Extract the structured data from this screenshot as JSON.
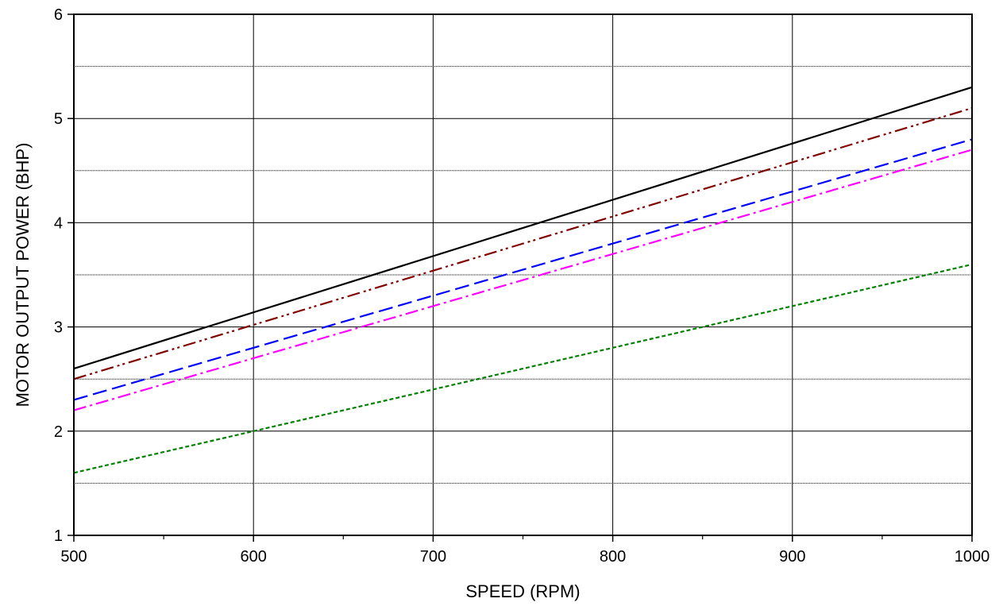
{
  "chart_data": {
    "type": "line",
    "title": "",
    "xlabel": "SPEED (RPM)",
    "ylabel": "MOTOR OUTPUT POWER (BHP)",
    "xlim": [
      500,
      1000
    ],
    "ylim": [
      1,
      6
    ],
    "x_ticks": [
      500,
      600,
      700,
      800,
      900,
      1000
    ],
    "x_tick_labels": [
      "500",
      "600",
      "700",
      "800",
      "900",
      "1000"
    ],
    "x_minor_ticks": [
      550,
      650,
      750,
      850,
      950
    ],
    "y_ticks": [
      1,
      2,
      3,
      4,
      5,
      6
    ],
    "y_tick_labels": [
      "1",
      "2",
      "3",
      "4",
      "5",
      "6"
    ],
    "y_minor_gridlines": [
      1.5,
      2.5,
      3.5,
      4.5,
      5.5
    ],
    "grid": true,
    "legend": "none",
    "series": [
      {
        "x": [
          500,
          1000
        ],
        "values": [
          2.6,
          5.3
        ],
        "color": "#000000",
        "dash": "solid"
      },
      {
        "x": [
          500,
          1000
        ],
        "values": [
          2.5,
          5.1
        ],
        "color": "#800000",
        "dash": "dash-dot-dot"
      },
      {
        "x": [
          500,
          1000
        ],
        "values": [
          2.3,
          4.8
        ],
        "color": "#0000ff",
        "dash": "dash"
      },
      {
        "x": [
          500,
          1000
        ],
        "values": [
          2.2,
          4.7
        ],
        "color": "#ff00ff",
        "dash": "dash-dot"
      },
      {
        "x": [
          500,
          600,
          700,
          800,
          900,
          1000
        ],
        "values": [
          1.6,
          2.0,
          2.4,
          2.8,
          3.2,
          3.6
        ],
        "color": "#008000",
        "dash": "short-dash"
      }
    ]
  }
}
